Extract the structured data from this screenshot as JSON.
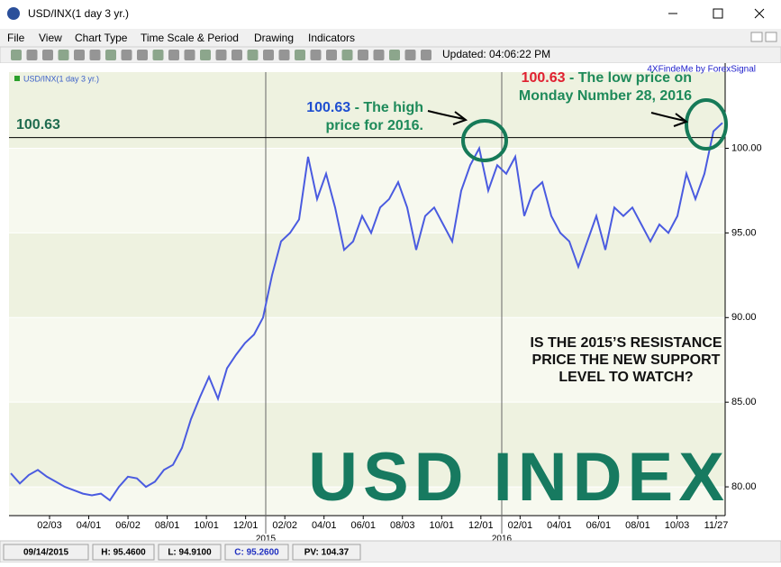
{
  "window": {
    "title": "USD/INX(1 day  3 yr.)"
  },
  "menu": [
    "File",
    "View",
    "Chart Type",
    "Time Scale & Period",
    "Drawing",
    "Indicators"
  ],
  "toolbar": {
    "status": "Updated: 04:06:22 PM"
  },
  "chart_data": {
    "type": "line",
    "credit": "4XFindeMe by ForexSignal",
    "series": [
      {
        "name": "USD/INX(1 day  3 yr.)",
        "color": "#4a5be0",
        "values": [
          80.8,
          80.2,
          80.7,
          81.0,
          80.6,
          80.3,
          80.0,
          79.8,
          79.6,
          79.5,
          79.6,
          79.2,
          80.0,
          80.6,
          80.5,
          80.0,
          80.3,
          81.0,
          81.3,
          82.3,
          84.0,
          85.3,
          86.5,
          85.2,
          87.0,
          87.8,
          88.5,
          89.0,
          90.0,
          92.5,
          94.5,
          95.0,
          95.8,
          99.5,
          97.0,
          98.5,
          96.5,
          94.0,
          94.5,
          96.0,
          95.0,
          96.5,
          97.0,
          98.0,
          96.5,
          94.0,
          96.0,
          96.5,
          95.5,
          94.5,
          97.5,
          99.0,
          100.0,
          97.5,
          99.0,
          98.5,
          99.5,
          96.0,
          97.5,
          98.0,
          96.0,
          95.0,
          94.5,
          93.0,
          94.5,
          96.0,
          94.0,
          96.5,
          96.0,
          96.5,
          95.5,
          94.5,
          95.5,
          95.0,
          96.0,
          98.5,
          97.0,
          98.5,
          101.0,
          101.5
        ]
      }
    ],
    "x_labels": [
      "02/03",
      "04/01",
      "06/02",
      "08/01",
      "10/01",
      "12/01",
      "02/02",
      "04/01",
      "06/01",
      "08/03",
      "10/01",
      "12/01",
      "02/01",
      "04/01",
      "06/01",
      "08/01",
      "10/03",
      "11/27"
    ],
    "year_labels": [
      "2015",
      "2016"
    ],
    "ylim": [
      78.3,
      104.5
    ],
    "yticks": [
      {
        "value": 80,
        "label": "80.00"
      },
      {
        "value": 85,
        "label": "85.00"
      },
      {
        "value": 90,
        "label": "90.00"
      },
      {
        "value": 95,
        "label": "95.00"
      },
      {
        "value": 100,
        "label": "100.00"
      }
    ],
    "grid": true,
    "reference_line": 100.63,
    "annotations": [
      {
        "value": 100.63,
        "lines": [
          " - The high",
          "price for 2016."
        ]
      },
      {
        "value": 100.63,
        "lines": [
          " - The low price on",
          "Monday Number 28, 2016"
        ]
      }
    ],
    "question": [
      "IS THE 2015’S RESISTANCE",
      "PRICE THE NEW SUPPORT",
      "LEVEL TO WATCH?"
    ],
    "watermark": "USD INDEX"
  },
  "status_bar": [
    "09/14/2015",
    "H: 95.4600",
    "L: 94.9100",
    "C: 95.2600",
    "PV: 104.37"
  ]
}
